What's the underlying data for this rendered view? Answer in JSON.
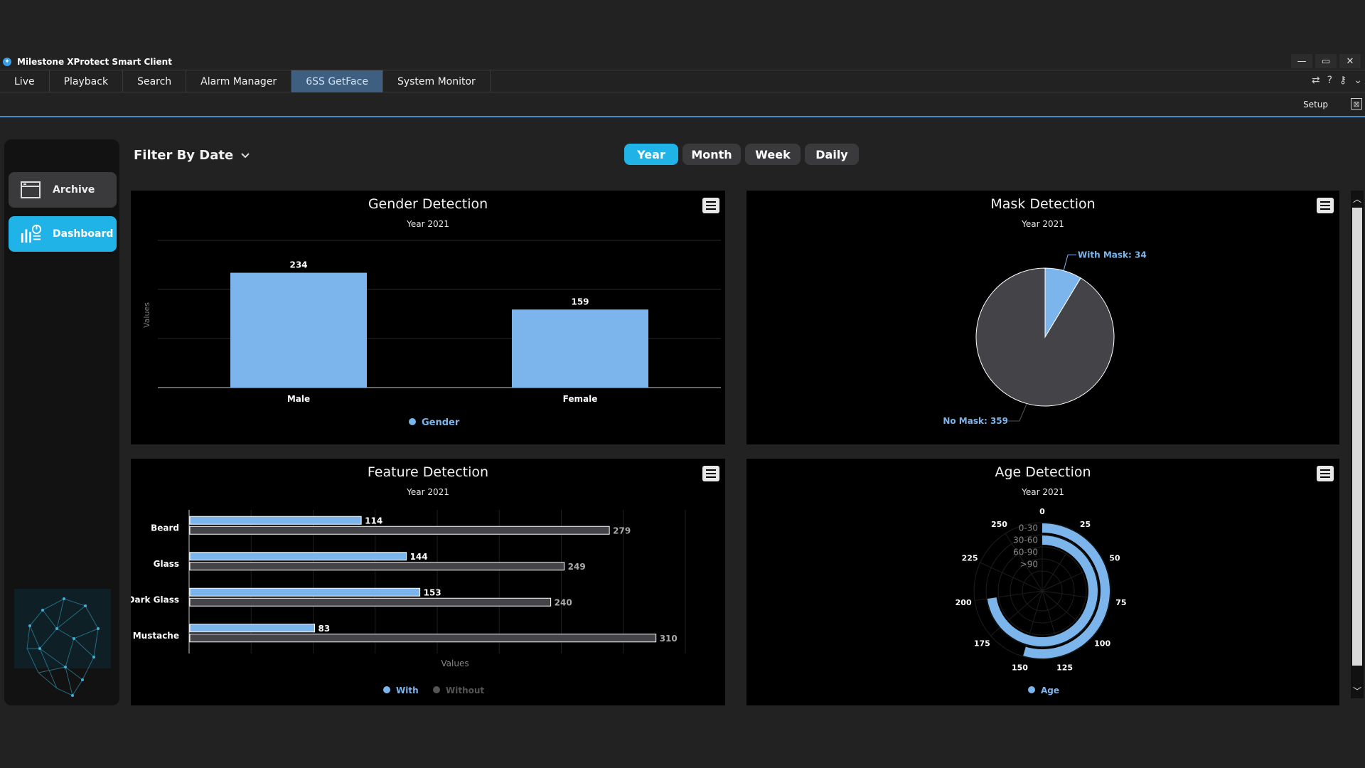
{
  "window": {
    "title": "Milestone XProtect Smart Client"
  },
  "tabs": [
    {
      "label": "Live",
      "active": false
    },
    {
      "label": "Playback",
      "active": false
    },
    {
      "label": "Search",
      "active": false
    },
    {
      "label": "Alarm Manager",
      "active": false
    },
    {
      "label": "6SS GetFace",
      "active": true
    },
    {
      "label": "System Monitor",
      "active": false
    }
  ],
  "toolbar": {
    "setup_label": "Setup"
  },
  "sidebar": {
    "archive_label": "Archive",
    "dashboard_label": "Dashboard"
  },
  "filter": {
    "label": "Filter By Date"
  },
  "periods": {
    "year": "Year",
    "month": "Month",
    "week": "Week",
    "daily": "Daily",
    "selected": "Year"
  },
  "colors": {
    "accent": "#1fb3e8",
    "bar_blue": "#7cb5ec",
    "bar_dark": "#434348"
  },
  "chart_data": [
    {
      "id": "gender",
      "type": "bar",
      "title": "Gender Detection",
      "subtitle": "Year 2021",
      "ylabel": "Values",
      "categories": [
        "Male",
        "Female"
      ],
      "values": [
        234,
        159
      ],
      "legend": "Gender",
      "ylim": [
        0,
        300
      ]
    },
    {
      "id": "mask",
      "type": "pie",
      "title": "Mask Detection",
      "subtitle": "Year 2021",
      "slices": [
        {
          "label": "With Mask",
          "value": 34,
          "display": "With Mask: 34"
        },
        {
          "label": "No Mask",
          "value": 359,
          "display": "No Mask: 359"
        }
      ]
    },
    {
      "id": "feature",
      "type": "bar",
      "orientation": "horizontal",
      "title": "Feature Detection",
      "subtitle": "Year 2021",
      "xlabel": "Values",
      "categories": [
        "Beard",
        "Glass",
        "Dark Glass",
        "Mustache"
      ],
      "series": [
        {
          "name": "With",
          "values": [
            114,
            144,
            153,
            83
          ]
        },
        {
          "name": "Without",
          "values": [
            279,
            249,
            240,
            310
          ]
        }
      ],
      "xlim": [
        0,
        330
      ]
    },
    {
      "id": "age",
      "type": "radial-bar",
      "title": "Age Detection",
      "subtitle": "Year 2021",
      "categories": [
        "0-30",
        "30-60",
        "60-90",
        ">90"
      ],
      "values": [
        150,
        200,
        0,
        0
      ],
      "scale_ticks": [
        "0",
        "25",
        "50",
        "75",
        "100",
        "125",
        "150",
        "175",
        "200",
        "225",
        "250"
      ],
      "scale_max": 275,
      "legend": "Age"
    }
  ]
}
